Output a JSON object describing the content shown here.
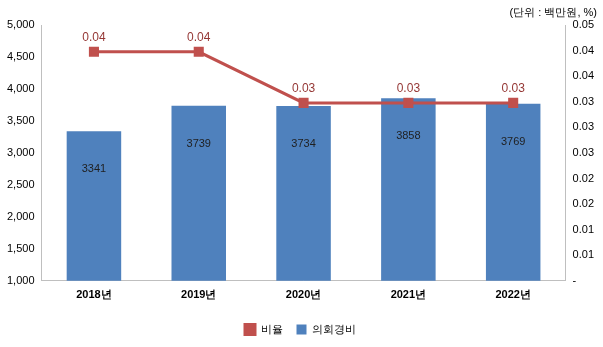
{
  "chart_data": {
    "type": "bar",
    "subtitle": "(단위 : 백만원, %)",
    "categories": [
      "2018년",
      "2019년",
      "2020년",
      "2021년",
      "2022년"
    ],
    "series": [
      {
        "name": "의회경비",
        "type": "bar",
        "color": "#4f81bd",
        "values": [
          3341,
          3739,
          3734,
          3858,
          3769
        ]
      },
      {
        "name": "비율",
        "type": "line",
        "axis": "y2",
        "color": "#c0504d",
        "marker": "square",
        "line_style": "solid",
        "values": [
          0.0448,
          0.0448,
          0.0348,
          0.0348,
          0.0348
        ],
        "value_labels": [
          "0.04",
          "0.04",
          "0.03",
          "0.03",
          "0.03"
        ]
      }
    ],
    "ylim": [
      1000,
      5000
    ],
    "yticks": [
      {
        "value": 1000,
        "label": "1,000"
      },
      {
        "value": 1500,
        "label": "1,500"
      },
      {
        "value": 2000,
        "label": "2,000"
      },
      {
        "value": 2500,
        "label": "2,500"
      },
      {
        "value": 3000,
        "label": "3,000"
      },
      {
        "value": 3500,
        "label": "3,500"
      },
      {
        "value": 4000,
        "label": "4,000"
      },
      {
        "value": 4500,
        "label": "4,500"
      },
      {
        "value": 5000,
        "label": "5,000"
      }
    ],
    "y2lim": [
      0,
      0.05
    ],
    "y2ticks": [
      {
        "value": 0,
        "label": "-"
      },
      {
        "value": 0.005,
        "label": "0.01"
      },
      {
        "value": 0.01,
        "label": "0.01"
      },
      {
        "value": 0.015,
        "label": "0.02"
      },
      {
        "value": 0.02,
        "label": "0.02"
      },
      {
        "value": 0.025,
        "label": "0.03"
      },
      {
        "value": 0.03,
        "label": "0.03"
      },
      {
        "value": 0.035,
        "label": "0.03"
      },
      {
        "value": 0.04,
        "label": "0.04"
      },
      {
        "value": 0.045,
        "label": "0.04"
      },
      {
        "value": 0.05,
        "label": "0.05"
      }
    ],
    "grid": false,
    "legend": "bottom",
    "data_labels": true
  }
}
